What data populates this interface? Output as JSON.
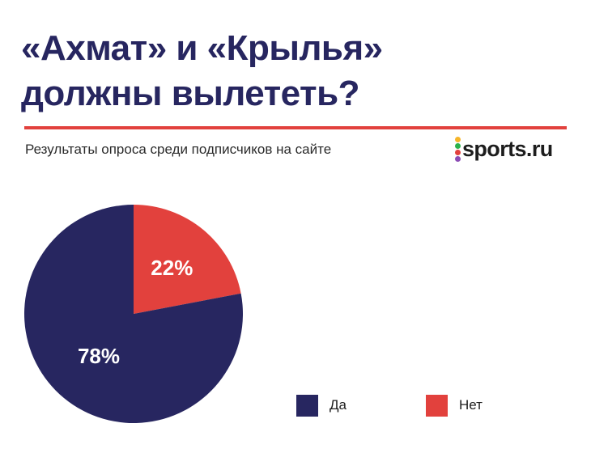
{
  "header": {
    "title_line1": "«Ахмат» и «Крылья»",
    "title_line2": "должны вылететь?",
    "subtitle": "Результаты опроса среди подписчиков на сайте",
    "accent_color": "#e2413d",
    "title_color": "#272660"
  },
  "logo": {
    "text": "sports.ru",
    "dot_colors": [
      "#f6b52a",
      "#2bb24c",
      "#e2413d",
      "#8b4bb5"
    ]
  },
  "chart_data": {
    "type": "pie",
    "categories": [
      "Да",
      "Нет"
    ],
    "values": [
      78,
      22
    ],
    "labels": [
      "78%",
      "22%"
    ],
    "colors": [
      "#272660",
      "#e2413d"
    ],
    "legend": "bottom-right"
  }
}
